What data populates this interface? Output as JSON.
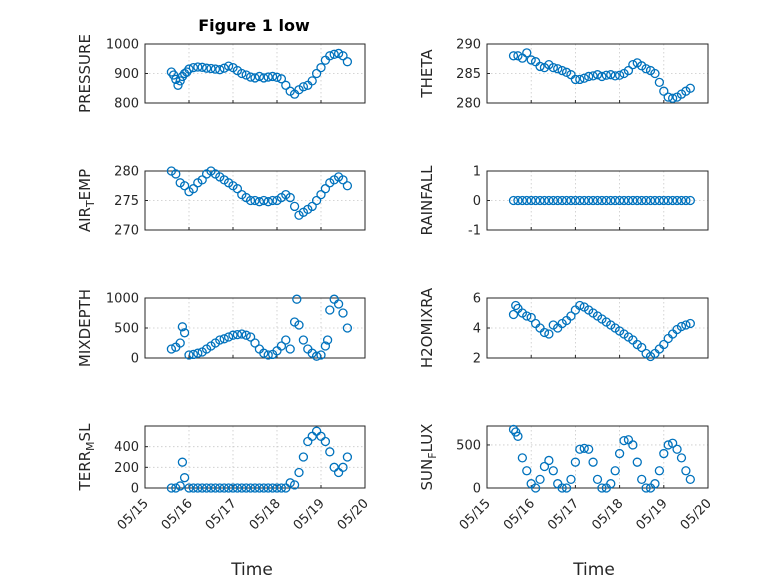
{
  "colors": {
    "marker": "#0072BD",
    "axis": "#262626",
    "grid": "#c8c8c8"
  },
  "chart_data": [
    {
      "type": "scatter",
      "title": "Figure 1 low",
      "ylabel": "PRESSURE",
      "ylim": [
        800,
        1000
      ],
      "yticks": [
        "800",
        "900",
        "1000"
      ],
      "xlim": [
        0,
        5
      ],
      "grid": true,
      "series": [
        {
          "x": [
            0.6,
            0.65,
            0.7,
            0.75,
            0.8,
            0.85,
            0.9,
            0.95,
            1.0,
            1.1,
            1.2,
            1.3,
            1.4,
            1.5,
            1.6,
            1.7,
            1.8,
            1.9,
            2.0,
            2.1,
            2.2,
            2.3,
            2.4,
            2.5,
            2.6,
            2.7,
            2.8,
            2.9,
            3.0,
            3.1,
            3.2,
            3.3,
            3.4,
            3.5,
            3.6,
            3.7,
            3.8,
            3.9,
            4.0,
            4.1,
            4.2,
            4.3,
            4.4,
            4.5,
            4.6
          ],
          "y": [
            905,
            895,
            880,
            860,
            875,
            890,
            900,
            905,
            915,
            920,
            922,
            921,
            918,
            917,
            915,
            913,
            918,
            925,
            920,
            910,
            900,
            895,
            888,
            885,
            890,
            885,
            888,
            890,
            887,
            882,
            860,
            840,
            830,
            845,
            855,
            860,
            875,
            900,
            920,
            945,
            960,
            965,
            968,
            960,
            940
          ]
        }
      ]
    },
    {
      "type": "scatter",
      "ylabel": "THETA",
      "ylim": [
        280,
        290
      ],
      "yticks": [
        "280",
        "285",
        "290"
      ],
      "xlim": [
        0,
        5
      ],
      "grid": true,
      "series": [
        {
          "x": [
            0.6,
            0.7,
            0.8,
            0.9,
            1.0,
            1.1,
            1.2,
            1.3,
            1.4,
            1.5,
            1.6,
            1.7,
            1.8,
            1.9,
            2.0,
            2.1,
            2.2,
            2.3,
            2.4,
            2.5,
            2.6,
            2.7,
            2.8,
            2.9,
            3.0,
            3.1,
            3.2,
            3.3,
            3.4,
            3.5,
            3.6,
            3.7,
            3.8,
            3.9,
            4.0,
            4.1,
            4.2,
            4.3,
            4.4,
            4.5,
            4.6
          ],
          "y": [
            288,
            288,
            287.6,
            288.5,
            287.3,
            287,
            286.2,
            286,
            286.5,
            286,
            285.8,
            285.5,
            285.2,
            284.8,
            284,
            284,
            284.2,
            284.5,
            284.6,
            284.8,
            284.5,
            284.7,
            284.8,
            284.6,
            284.7,
            285,
            285.5,
            286.5,
            286.8,
            286.3,
            285.8,
            285.5,
            285,
            283.5,
            282,
            281,
            280.8,
            281,
            281.5,
            282,
            282.5
          ]
        }
      ]
    },
    {
      "type": "scatter",
      "ylabel": "AIR_TEMP",
      "ylim": [
        270,
        280
      ],
      "yticks": [
        "270",
        "275",
        "280"
      ],
      "xlim": [
        0,
        5
      ],
      "grid": true,
      "series": [
        {
          "x": [
            0.6,
            0.7,
            0.8,
            0.9,
            1.0,
            1.1,
            1.2,
            1.3,
            1.4,
            1.5,
            1.6,
            1.7,
            1.8,
            1.9,
            2.0,
            2.1,
            2.2,
            2.3,
            2.4,
            2.5,
            2.6,
            2.7,
            2.8,
            2.9,
            3.0,
            3.1,
            3.2,
            3.3,
            3.4,
            3.5,
            3.6,
            3.7,
            3.8,
            3.9,
            4.0,
            4.1,
            4.2,
            4.3,
            4.4,
            4.5,
            4.6
          ],
          "y": [
            280,
            279.5,
            278,
            277.5,
            276.5,
            277,
            278,
            278.5,
            279.5,
            280,
            279.5,
            279,
            278.5,
            278,
            277.5,
            277,
            276,
            275.5,
            275,
            275,
            274.8,
            275,
            274.8,
            275,
            275,
            275.5,
            276,
            275.5,
            274,
            272.5,
            273,
            273.5,
            274,
            275,
            276,
            277,
            278,
            278.5,
            279,
            278.5,
            277.5
          ]
        }
      ]
    },
    {
      "type": "scatter",
      "ylabel": "RAINFALL",
      "ylim": [
        -1,
        1
      ],
      "yticks": [
        "-1",
        "0",
        "1"
      ],
      "xlim": [
        0,
        5
      ],
      "grid": true,
      "series": [
        {
          "x": [
            0.6,
            0.7,
            0.8,
            0.9,
            1.0,
            1.1,
            1.2,
            1.3,
            1.4,
            1.5,
            1.6,
            1.7,
            1.8,
            1.9,
            2.0,
            2.1,
            2.2,
            2.3,
            2.4,
            2.5,
            2.6,
            2.7,
            2.8,
            2.9,
            3.0,
            3.1,
            3.2,
            3.3,
            3.4,
            3.5,
            3.6,
            3.7,
            3.8,
            3.9,
            4.0,
            4.1,
            4.2,
            4.3,
            4.4,
            4.5,
            4.6
          ],
          "y": [
            0,
            0,
            0,
            0,
            0,
            0,
            0,
            0,
            0,
            0,
            0,
            0,
            0,
            0,
            0,
            0,
            0,
            0,
            0,
            0,
            0,
            0,
            0,
            0,
            0,
            0,
            0,
            0,
            0,
            0,
            0,
            0,
            0,
            0,
            0,
            0,
            0,
            0,
            0,
            0,
            0
          ]
        }
      ]
    },
    {
      "type": "scatter",
      "ylabel": "MIXDEPTH",
      "ylim": [
        0,
        1000
      ],
      "yticks": [
        "0",
        "500",
        "1000"
      ],
      "xlim": [
        0,
        5
      ],
      "grid": true,
      "series": [
        {
          "x": [
            0.6,
            0.7,
            0.8,
            0.85,
            0.9,
            1.0,
            1.1,
            1.2,
            1.3,
            1.4,
            1.5,
            1.6,
            1.7,
            1.8,
            1.9,
            2.0,
            2.1,
            2.2,
            2.3,
            2.4,
            2.5,
            2.6,
            2.7,
            2.8,
            2.9,
            3.0,
            3.1,
            3.2,
            3.3,
            3.4,
            3.45,
            3.5,
            3.6,
            3.7,
            3.8,
            3.9,
            4.0,
            4.1,
            4.15,
            4.2,
            4.3,
            4.4,
            4.5,
            4.6
          ],
          "y": [
            150,
            180,
            250,
            520,
            420,
            50,
            60,
            80,
            100,
            150,
            200,
            250,
            300,
            320,
            350,
            380,
            390,
            400,
            380,
            350,
            250,
            150,
            80,
            50,
            60,
            120,
            200,
            300,
            150,
            600,
            980,
            550,
            300,
            150,
            80,
            30,
            50,
            200,
            300,
            800,
            980,
            900,
            750,
            500
          ]
        }
      ]
    },
    {
      "type": "scatter",
      "ylabel": "H2OMIXRA",
      "ylim": [
        2,
        6
      ],
      "yticks": [
        "2",
        "4",
        "6"
      ],
      "xlim": [
        0,
        5
      ],
      "grid": true,
      "series": [
        {
          "x": [
            0.6,
            0.65,
            0.7,
            0.8,
            0.9,
            1.0,
            1.1,
            1.2,
            1.3,
            1.4,
            1.5,
            1.6,
            1.7,
            1.8,
            1.9,
            2.0,
            2.1,
            2.2,
            2.3,
            2.4,
            2.5,
            2.6,
            2.7,
            2.8,
            2.9,
            3.0,
            3.1,
            3.2,
            3.3,
            3.4,
            3.5,
            3.6,
            3.7,
            3.8,
            3.9,
            4.0,
            4.1,
            4.2,
            4.3,
            4.4,
            4.5,
            4.6
          ],
          "y": [
            4.9,
            5.5,
            5.3,
            5.0,
            4.8,
            4.7,
            4.3,
            4.0,
            3.7,
            3.6,
            4.2,
            4.0,
            4.3,
            4.5,
            4.8,
            5.2,
            5.5,
            5.4,
            5.2,
            5.0,
            4.8,
            4.6,
            4.4,
            4.2,
            4.0,
            3.8,
            3.6,
            3.4,
            3.2,
            2.9,
            2.7,
            2.3,
            2.1,
            2.3,
            2.6,
            2.9,
            3.3,
            3.6,
            3.9,
            4.1,
            4.2,
            4.3
          ]
        }
      ]
    },
    {
      "type": "scatter",
      "ylabel": "TERR_MSL",
      "ylim": [
        0,
        600
      ],
      "yticks": [
        "0",
        "200",
        "400"
      ],
      "xlim": [
        0,
        5
      ],
      "grid": true,
      "series": [
        {
          "x": [
            0.6,
            0.7,
            0.8,
            0.85,
            0.9,
            1.0,
            1.1,
            1.2,
            1.3,
            1.4,
            1.5,
            1.6,
            1.7,
            1.8,
            1.9,
            2.0,
            2.1,
            2.2,
            2.3,
            2.4,
            2.5,
            2.6,
            2.7,
            2.8,
            2.9,
            3.0,
            3.1,
            3.2,
            3.3,
            3.4,
            3.5,
            3.6,
            3.7,
            3.8,
            3.9,
            4.0,
            4.1,
            4.2,
            4.3,
            4.4,
            4.5,
            4.6
          ],
          "y": [
            0,
            0,
            20,
            250,
            100,
            0,
            0,
            0,
            0,
            0,
            0,
            0,
            0,
            0,
            0,
            0,
            0,
            0,
            0,
            0,
            0,
            0,
            0,
            0,
            0,
            0,
            0,
            0,
            50,
            30,
            150,
            300,
            450,
            500,
            550,
            500,
            450,
            350,
            200,
            150,
            200,
            300
          ]
        }
      ]
    },
    {
      "type": "scatter",
      "ylabel": "SUN_FLUX",
      "ylim": [
        0,
        720
      ],
      "yticks": [
        "0",
        "500"
      ],
      "xlim": [
        0,
        5
      ],
      "grid": true,
      "series": [
        {
          "x": [
            0.6,
            0.65,
            0.7,
            0.8,
            0.9,
            1.0,
            1.1,
            1.2,
            1.3,
            1.4,
            1.5,
            1.6,
            1.7,
            1.8,
            1.9,
            2.0,
            2.1,
            2.2,
            2.3,
            2.4,
            2.5,
            2.6,
            2.7,
            2.8,
            2.9,
            3.0,
            3.1,
            3.2,
            3.3,
            3.4,
            3.5,
            3.6,
            3.7,
            3.8,
            3.9,
            4.0,
            4.1,
            4.2,
            4.3,
            4.4,
            4.5,
            4.6
          ],
          "y": [
            680,
            650,
            600,
            350,
            200,
            50,
            0,
            100,
            250,
            320,
            200,
            50,
            0,
            0,
            100,
            300,
            450,
            460,
            450,
            300,
            100,
            0,
            0,
            50,
            200,
            400,
            550,
            560,
            500,
            300,
            100,
            0,
            0,
            50,
            200,
            400,
            500,
            520,
            450,
            350,
            200,
            100
          ]
        }
      ]
    }
  ],
  "x_axis": {
    "xlabel": "Time",
    "ticks": [
      "05/15",
      "05/16",
      "05/17",
      "05/18",
      "05/19",
      "05/20"
    ]
  }
}
